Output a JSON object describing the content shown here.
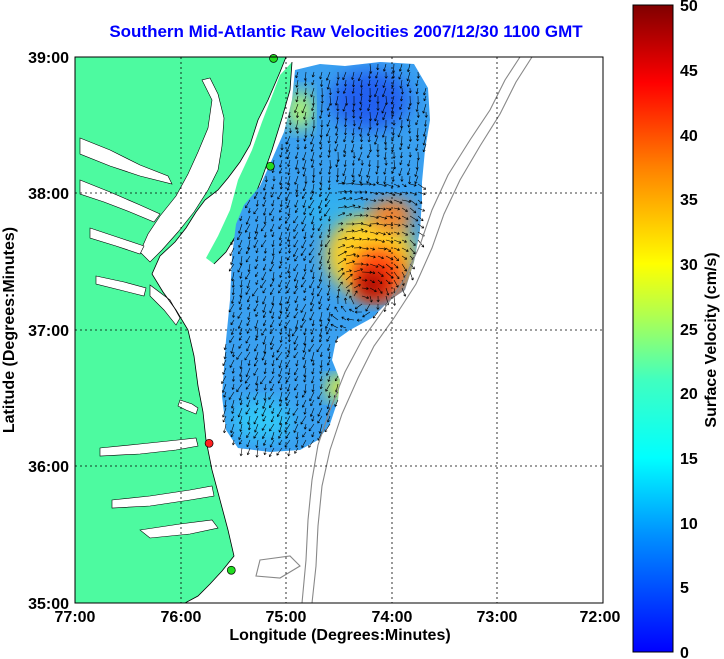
{
  "title": "Southern Mid-Atlantic Raw Velocities 2007/12/30 1100 GMT",
  "x_axis": {
    "label": "Longitude (Degrees:Minutes)",
    "ticks": [
      "77:00",
      "76:00",
      "75:00",
      "74:00",
      "73:00",
      "72:00"
    ]
  },
  "y_axis": {
    "label": "Latitude (Degrees:Minutes)",
    "ticks": [
      "39:00",
      "38:00",
      "37:00",
      "36:00",
      "35:00"
    ]
  },
  "colorbar": {
    "label": "Surface Velocity (cm/s)",
    "ticks": [
      "50",
      "45",
      "40",
      "35",
      "30",
      "25",
      "20",
      "15",
      "10",
      "5",
      "0"
    ],
    "min": 0,
    "max": 50
  },
  "colors": {
    "land": "#4dfaa0",
    "title": "#0000ff",
    "bathymetry": "#888888"
  },
  "stations": [
    {
      "lon": -75.12,
      "lat": 38.99,
      "color": "#22dd22"
    },
    {
      "lon": -75.15,
      "lat": 38.2,
      "color": "#22dd22"
    },
    {
      "lon": -75.73,
      "lat": 36.17,
      "color": "#ff2020"
    },
    {
      "lon": -75.52,
      "lat": 35.24,
      "color": "#22dd22"
    }
  ]
}
